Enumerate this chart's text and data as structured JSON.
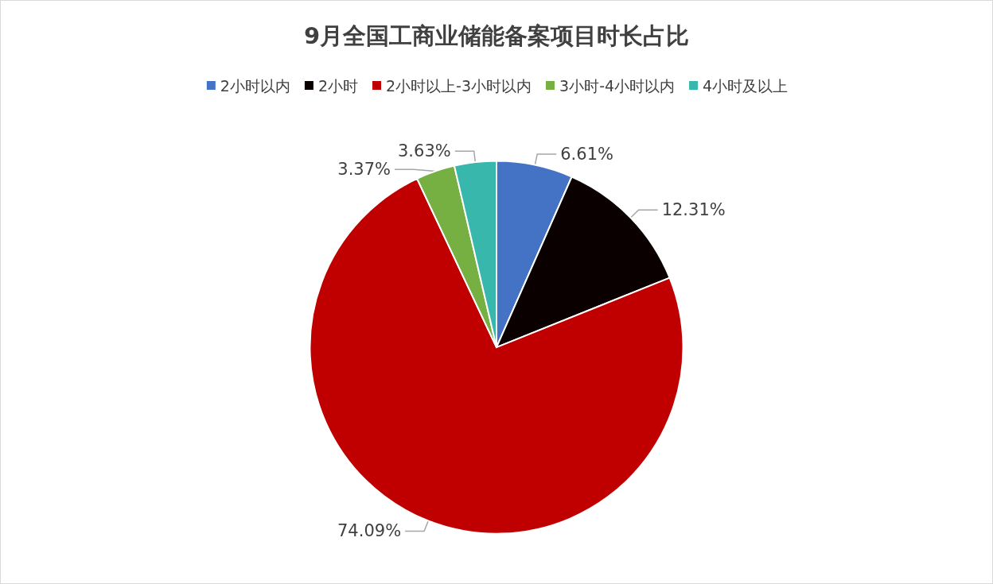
{
  "chart_data": {
    "type": "pie",
    "title": "9月全国工商业储能备案项目时长占比",
    "categories": [
      "2小时以内",
      "2小时",
      "2小时以上-3小时以内",
      "3小时-4小时以内",
      "4小时及以上"
    ],
    "values": [
      6.61,
      12.31,
      74.09,
      3.37,
      3.63
    ],
    "value_labels": [
      "6.61%",
      "12.31%",
      "74.09%",
      "3.37%",
      "3.63%"
    ],
    "colors": [
      "#4472c4",
      "#0a0000",
      "#c00000",
      "#76b043",
      "#38b8ad"
    ],
    "legend": "top"
  }
}
